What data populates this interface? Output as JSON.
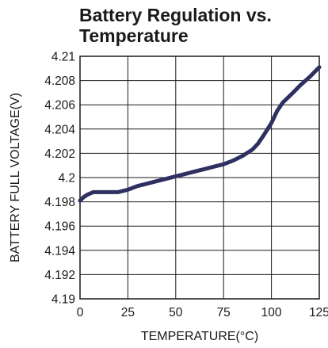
{
  "chart_data": {
    "type": "line",
    "title_lines": [
      "Battery Regulation vs.",
      "Temperature"
    ],
    "xlabel": "TEMPERATURE(°C)",
    "ylabel": "BATTERY FULL VOLTAGE(V)",
    "xlim": [
      0,
      125
    ],
    "ylim": [
      4.19,
      4.21
    ],
    "x_ticks": [
      "0",
      "25",
      "50",
      "75",
      "100",
      "125"
    ],
    "x_tick_values": [
      0,
      25,
      50,
      75,
      100,
      125
    ],
    "y_ticks": [
      "4.21",
      "4.208",
      "4.206",
      "4.204",
      "4.202",
      "4.2",
      "4.198",
      "4.196",
      "4.194",
      "4.192",
      "4.19"
    ],
    "y_tick_values": [
      4.21,
      4.208,
      4.206,
      4.204,
      4.202,
      4.2,
      4.198,
      4.196,
      4.194,
      4.192,
      4.19
    ],
    "grid": true,
    "line_color": "#2e3061",
    "grid_color": "#1a1a1a",
    "series": [
      {
        "x": [
          0,
          2,
          4,
          7,
          10,
          15,
          20,
          25,
          30,
          35,
          40,
          45,
          50,
          55,
          60,
          65,
          70,
          75,
          80,
          85,
          90,
          93,
          96,
          100,
          103,
          106,
          110,
          115,
          120,
          125
        ],
        "y": [
          4.1981,
          4.1984,
          4.1986,
          4.1988,
          4.1988,
          4.1988,
          4.1988,
          4.199,
          4.1993,
          4.1995,
          4.1997,
          4.1999,
          4.2001,
          4.2003,
          4.2005,
          4.2007,
          4.2009,
          4.2011,
          4.2014,
          4.2018,
          4.2023,
          4.2028,
          4.2035,
          4.2045,
          4.2055,
          4.2062,
          4.2068,
          4.2076,
          4.2083,
          4.2091
        ]
      }
    ]
  }
}
